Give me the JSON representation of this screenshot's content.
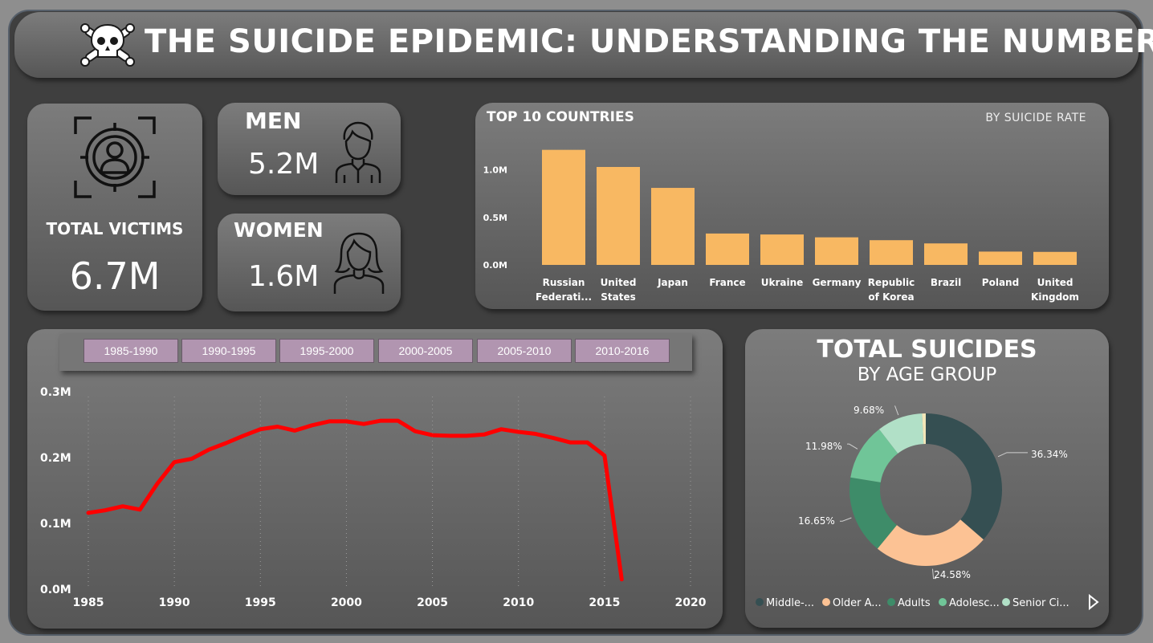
{
  "header": {
    "title": "THE SUICIDE EPIDEMIC: UNDERSTANDING THE NUMBERS"
  },
  "kpis": {
    "total": {
      "label": "TOTAL VICTIMS",
      "value": "6.7M"
    },
    "men": {
      "label": "MEN",
      "value": "5.2M"
    },
    "women": {
      "label": "WOMEN",
      "value": "1.6M"
    }
  },
  "year_slicer": {
    "options": [
      "1985-1990",
      "1990-1995",
      "1995-2000",
      "2000-2005",
      "2005-2010",
      "2010-2016"
    ]
  },
  "colors": {
    "bar": "#f8b862",
    "line": "#ff0000",
    "slicer": "#b195b0",
    "donut": [
      "#354f52",
      "#fcc294",
      "#3e8c69",
      "#70c598",
      "#b1e0c7",
      "#f2e6b8"
    ]
  },
  "chart_data": [
    {
      "type": "bar",
      "title": "TOP 10 COUNTRIES",
      "subtitle": "BY SUICIDE RATE",
      "categories": [
        [
          "Russian",
          "Federati..."
        ],
        [
          "United",
          "States"
        ],
        [
          "Japan"
        ],
        [
          "France"
        ],
        [
          "Ukraine"
        ],
        [
          "Germany"
        ],
        [
          "Republic",
          "of Korea"
        ],
        [
          "Brazil"
        ],
        [
          "Poland"
        ],
        [
          "United",
          "Kingdom"
        ]
      ],
      "values": [
        1210000,
        1030000,
        810000,
        330000,
        320000,
        290000,
        260000,
        226000,
        140000,
        137000
      ],
      "yticks": [
        0,
        500000,
        1000000
      ],
      "ytick_labels": [
        "0.0M",
        "0.5M",
        "1.0M"
      ],
      "ylim": [
        0,
        1300000
      ]
    },
    {
      "type": "line",
      "x": [
        1985,
        1986,
        1987,
        1988,
        1989,
        1990,
        1991,
        1992,
        1993,
        1994,
        1995,
        1996,
        1997,
        1998,
        1999,
        2000,
        2001,
        2002,
        2003,
        2004,
        2005,
        2006,
        2007,
        2008,
        2009,
        2010,
        2011,
        2012,
        2013,
        2014,
        2015,
        2016
      ],
      "y": [
        116000,
        120000,
        126000,
        121000,
        160000,
        193000,
        198000,
        212000,
        222000,
        233000,
        243000,
        247000,
        241000,
        249000,
        255000,
        255000,
        251000,
        256000,
        256000,
        240000,
        234000,
        233000,
        233000,
        235000,
        243000,
        239000,
        236000,
        230000,
        223000,
        223000,
        203000,
        15000
      ],
      "xticks": [
        1985,
        1990,
        1995,
        2000,
        2005,
        2010,
        2015,
        2020
      ],
      "yticks": [
        0,
        100000,
        200000,
        300000
      ],
      "ytick_labels": [
        "0.0M",
        "0.1M",
        "0.2M",
        "0.3M"
      ],
      "xlim": [
        1985,
        2020
      ],
      "ylim": [
        0,
        300000
      ]
    },
    {
      "type": "pie",
      "title": "TOTAL SUICIDES",
      "subtitle": "BY AGE GROUP",
      "values": [
        36.34,
        24.58,
        16.65,
        11.98,
        9.68,
        0.77
      ],
      "value_labels": [
        "36.34%",
        "24.58%",
        "16.65%",
        "11.98%",
        "9.68%",
        ""
      ],
      "legend": [
        "Middle-...",
        "Older A...",
        "Adults",
        "Adolesc...",
        "Senior Ci..."
      ]
    }
  ]
}
